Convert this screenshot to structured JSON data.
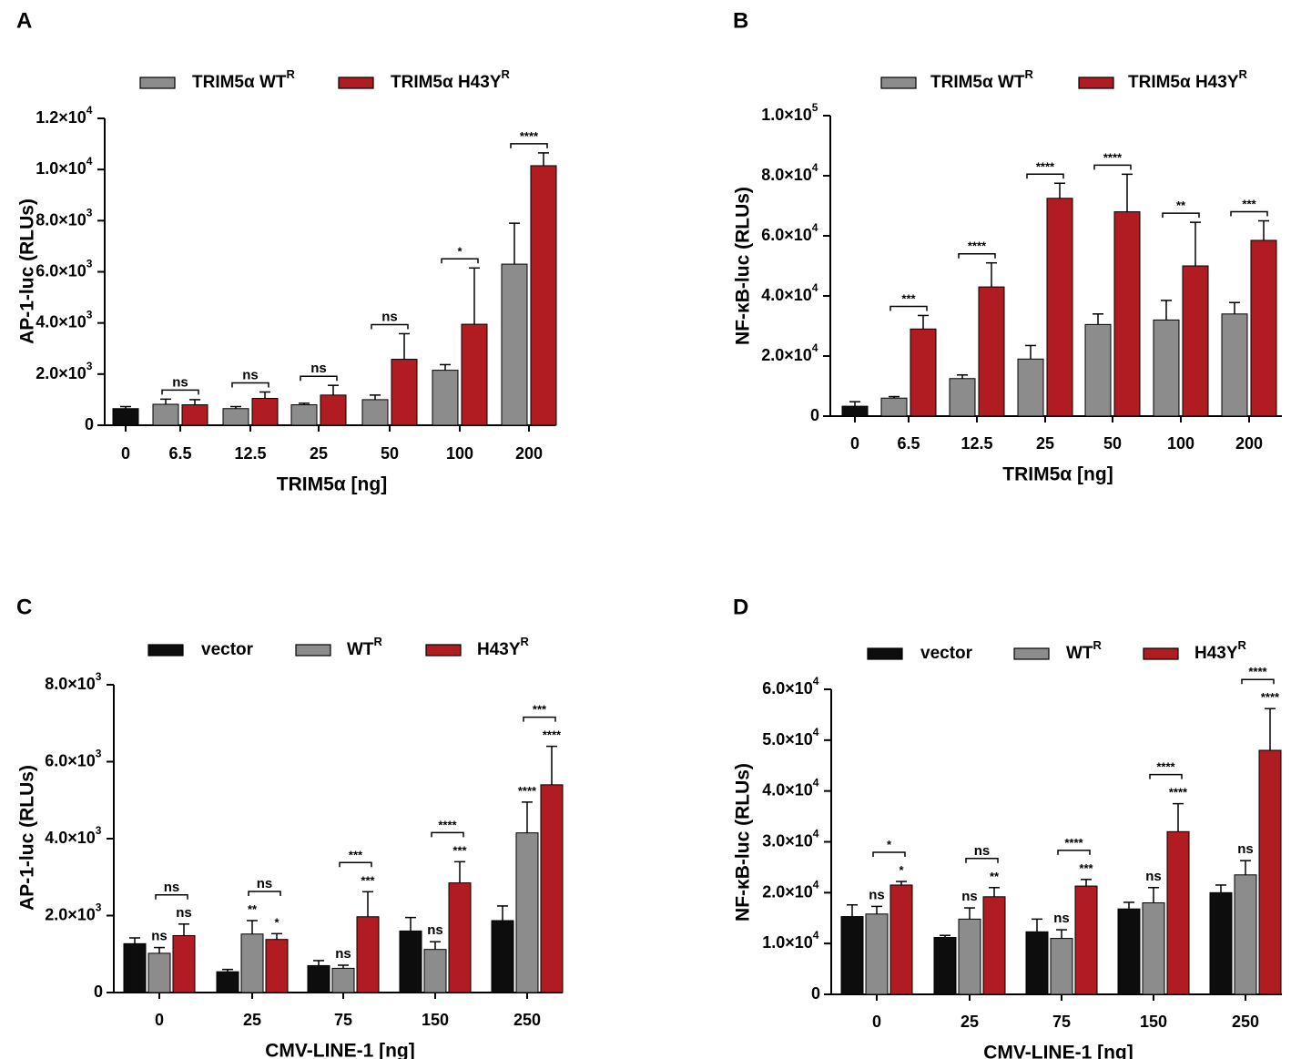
{
  "colors": {
    "vector": "#0d0d0d",
    "wt": "#8c8c8c",
    "h43y": "#b01c22",
    "axis": "#000000"
  },
  "chart_data": [
    {
      "panel": "A",
      "type": "bar",
      "legend": [
        {
          "key": "wt",
          "label": "TRIM5α WT",
          "sup": "R"
        },
        {
          "key": "h43y",
          "label": "TRIM5α H43Y",
          "sup": "R"
        }
      ],
      "ylabel": "AP-1-luc (RLUs)",
      "xlabel": "TRIM5α [ng]",
      "ylim": [
        0,
        12000
      ],
      "yticks": [
        {
          "v": 0,
          "label": "0"
        },
        {
          "v": 2000,
          "m": "2.0",
          "e": "3"
        },
        {
          "v": 4000,
          "m": "4.0",
          "e": "3"
        },
        {
          "v": 6000,
          "m": "6.0",
          "e": "3"
        },
        {
          "v": 8000,
          "m": "8.0",
          "e": "3"
        },
        {
          "v": 10000,
          "m": "1.0",
          "e": "4"
        },
        {
          "v": 12000,
          "m": "1.2",
          "e": "4"
        }
      ],
      "groups": [
        {
          "label": "0",
          "bars": [
            {
              "s": "vector",
              "v": 650,
              "e": 80
            }
          ]
        },
        {
          "label": "6.5",
          "bars": [
            {
              "s": "wt",
              "v": 820,
              "e": 200
            },
            {
              "s": "h43y",
              "v": 800,
              "e": 200
            }
          ],
          "bracket": "ns"
        },
        {
          "label": "12.5",
          "bars": [
            {
              "s": "wt",
              "v": 650,
              "e": 80
            },
            {
              "s": "h43y",
              "v": 1050,
              "e": 250
            }
          ],
          "bracket": "ns"
        },
        {
          "label": "25",
          "bars": [
            {
              "s": "wt",
              "v": 800,
              "e": 60
            },
            {
              "s": "h43y",
              "v": 1180,
              "e": 380
            }
          ],
          "bracket": "ns"
        },
        {
          "label": "50",
          "bars": [
            {
              "s": "wt",
              "v": 1000,
              "e": 180
            },
            {
              "s": "h43y",
              "v": 2580,
              "e": 1000
            }
          ],
          "bracket": "ns"
        },
        {
          "label": "100",
          "bars": [
            {
              "s": "wt",
              "v": 2150,
              "e": 220
            },
            {
              "s": "h43y",
              "v": 3950,
              "e": 2200
            }
          ],
          "bracket": "*"
        },
        {
          "label": "200",
          "bars": [
            {
              "s": "wt",
              "v": 6300,
              "e": 1600
            },
            {
              "s": "h43y",
              "v": 10150,
              "e": 500
            }
          ],
          "bracket": "****"
        }
      ]
    },
    {
      "panel": "B",
      "type": "bar",
      "legend": [
        {
          "key": "wt",
          "label": "TRIM5α WT",
          "sup": "R"
        },
        {
          "key": "h43y",
          "label": "TRIM5α H43Y",
          "sup": "R"
        }
      ],
      "ylabel": "NF-κB-luc (RLUs)",
      "xlabel": "TRIM5α [ng]",
      "ylim": [
        0,
        100000
      ],
      "yticks": [
        {
          "v": 0,
          "label": "0"
        },
        {
          "v": 20000,
          "m": "2.0",
          "e": "4"
        },
        {
          "v": 40000,
          "m": "4.0",
          "e": "4"
        },
        {
          "v": 60000,
          "m": "6.0",
          "e": "4"
        },
        {
          "v": 80000,
          "m": "8.0",
          "e": "4"
        },
        {
          "v": 100000,
          "m": "1.0",
          "e": "5"
        }
      ],
      "groups": [
        {
          "label": "0",
          "bars": [
            {
              "s": "vector",
              "v": 3300,
              "e": 1500
            }
          ]
        },
        {
          "label": "6.5",
          "bars": [
            {
              "s": "wt",
              "v": 6000,
              "e": 500
            },
            {
              "s": "h43y",
              "v": 29000,
              "e": 4500
            }
          ],
          "bracket": "***"
        },
        {
          "label": "12.5",
          "bars": [
            {
              "s": "wt",
              "v": 12500,
              "e": 1200
            },
            {
              "s": "h43y",
              "v": 43000,
              "e": 8000
            }
          ],
          "bracket": "****"
        },
        {
          "label": "25",
          "bars": [
            {
              "s": "wt",
              "v": 19000,
              "e": 4500
            },
            {
              "s": "h43y",
              "v": 72500,
              "e": 5000
            }
          ],
          "bracket": "****"
        },
        {
          "label": "50",
          "bars": [
            {
              "s": "wt",
              "v": 30500,
              "e": 3500
            },
            {
              "s": "h43y",
              "v": 68000,
              "e": 12500
            }
          ],
          "bracket": "****"
        },
        {
          "label": "100",
          "bars": [
            {
              "s": "wt",
              "v": 32000,
              "e": 6500
            },
            {
              "s": "h43y",
              "v": 50000,
              "e": 14500
            }
          ],
          "bracket": "**"
        },
        {
          "label": "200",
          "bars": [
            {
              "s": "wt",
              "v": 34000,
              "e": 3800
            },
            {
              "s": "h43y",
              "v": 58500,
              "e": 6500
            }
          ],
          "bracket": "***"
        }
      ]
    },
    {
      "panel": "C",
      "type": "bar",
      "legend": [
        {
          "key": "vector",
          "label": "vector",
          "sup": ""
        },
        {
          "key": "wt",
          "label": "WT",
          "sup": "R"
        },
        {
          "key": "h43y",
          "label": "H43Y",
          "sup": "R"
        }
      ],
      "ylabel": "AP-1-luc (RLUs)",
      "xlabel": "CMV-LINE-1 [ng]",
      "ylim": [
        0,
        8000
      ],
      "yticks": [
        {
          "v": 0,
          "label": "0"
        },
        {
          "v": 2000,
          "m": "2.0",
          "e": "3"
        },
        {
          "v": 4000,
          "m": "4.0",
          "e": "3"
        },
        {
          "v": 6000,
          "m": "6.0",
          "e": "3"
        },
        {
          "v": 8000,
          "m": "8.0",
          "e": "3"
        }
      ],
      "groups": [
        {
          "label": "0",
          "bars": [
            {
              "s": "vector",
              "v": 1270,
              "e": 150
            },
            {
              "s": "wt",
              "v": 1020,
              "e": 150,
              "sig": "ns"
            },
            {
              "s": "h43y",
              "v": 1480,
              "e": 300,
              "sig": "ns"
            }
          ],
          "bracket": "ns"
        },
        {
          "label": "25",
          "bars": [
            {
              "s": "vector",
              "v": 540,
              "e": 60
            },
            {
              "s": "wt",
              "v": 1520,
              "e": 350,
              "sig": "**"
            },
            {
              "s": "h43y",
              "v": 1380,
              "e": 150,
              "sig": "*"
            }
          ],
          "bracket": "ns"
        },
        {
          "label": "75",
          "bars": [
            {
              "s": "vector",
              "v": 700,
              "e": 130
            },
            {
              "s": "wt",
              "v": 630,
              "e": 80,
              "sig": "ns"
            },
            {
              "s": "h43y",
              "v": 1970,
              "e": 650,
              "sig": "***"
            }
          ],
          "bracket": "***"
        },
        {
          "label": "150",
          "bars": [
            {
              "s": "vector",
              "v": 1600,
              "e": 350
            },
            {
              "s": "wt",
              "v": 1120,
              "e": 200,
              "sig": "ns"
            },
            {
              "s": "h43y",
              "v": 2850,
              "e": 550,
              "sig": "***"
            }
          ],
          "bracket": "****"
        },
        {
          "label": "250",
          "bars": [
            {
              "s": "vector",
              "v": 1870,
              "e": 380
            },
            {
              "s": "wt",
              "v": 4150,
              "e": 800,
              "sig": "****"
            },
            {
              "s": "h43y",
              "v": 5400,
              "e": 1000,
              "sig": "****"
            }
          ],
          "bracket": "***"
        }
      ]
    },
    {
      "panel": "D",
      "type": "bar",
      "legend": [
        {
          "key": "vector",
          "label": "vector",
          "sup": ""
        },
        {
          "key": "wt",
          "label": "WT",
          "sup": "R"
        },
        {
          "key": "h43y",
          "label": "H43Y",
          "sup": "R"
        }
      ],
      "ylabel": "NF-κB-luc (RLUs)",
      "xlabel": "CMV-LINE-1 [ng]",
      "ylim": [
        0,
        60000
      ],
      "yticks": [
        {
          "v": 0,
          "label": "0"
        },
        {
          "v": 10000,
          "m": "1.0",
          "e": "4"
        },
        {
          "v": 20000,
          "m": "2.0",
          "e": "4"
        },
        {
          "v": 30000,
          "m": "3.0",
          "e": "4"
        },
        {
          "v": 40000,
          "m": "4.0",
          "e": "4"
        },
        {
          "v": 50000,
          "m": "5.0",
          "e": "4"
        },
        {
          "v": 60000,
          "m": "6.0",
          "e": "4"
        }
      ],
      "groups": [
        {
          "label": "0",
          "bars": [
            {
              "s": "vector",
              "v": 15300,
              "e": 2300
            },
            {
              "s": "wt",
              "v": 15800,
              "e": 1500,
              "sig": "ns"
            },
            {
              "s": "h43y",
              "v": 21500,
              "e": 700,
              "sig": "*"
            }
          ],
          "bracket": "*"
        },
        {
          "label": "25",
          "bars": [
            {
              "s": "vector",
              "v": 11200,
              "e": 400
            },
            {
              "s": "wt",
              "v": 14800,
              "e": 2200,
              "sig": "ns"
            },
            {
              "s": "h43y",
              "v": 19200,
              "e": 1800,
              "sig": "**"
            }
          ],
          "bracket": "ns"
        },
        {
          "label": "75",
          "bars": [
            {
              "s": "vector",
              "v": 12300,
              "e": 2500
            },
            {
              "s": "wt",
              "v": 11000,
              "e": 1700,
              "sig": "ns"
            },
            {
              "s": "h43y",
              "v": 21300,
              "e": 1300,
              "sig": "***"
            }
          ],
          "bracket": "****"
        },
        {
          "label": "150",
          "bars": [
            {
              "s": "vector",
              "v": 16800,
              "e": 1300
            },
            {
              "s": "wt",
              "v": 18000,
              "e": 3000,
              "sig": "ns"
            },
            {
              "s": "h43y",
              "v": 32000,
              "e": 5500,
              "sig": "****"
            }
          ],
          "bracket": "****"
        },
        {
          "label": "250",
          "bars": [
            {
              "s": "vector",
              "v": 20000,
              "e": 1500
            },
            {
              "s": "wt",
              "v": 23500,
              "e": 2800,
              "sig": "ns"
            },
            {
              "s": "h43y",
              "v": 48000,
              "e": 8200,
              "sig": "****"
            }
          ],
          "bracket": "****"
        }
      ]
    }
  ]
}
